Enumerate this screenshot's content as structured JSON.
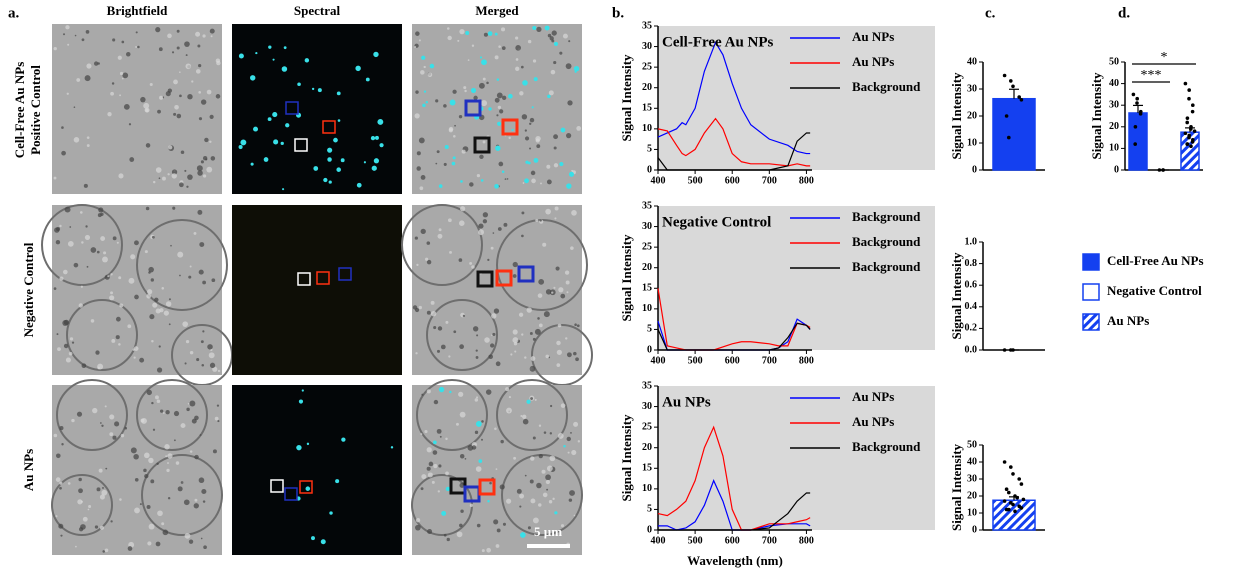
{
  "panel_a": {
    "label": "a.",
    "columns": [
      "Brightfield",
      "Spectral",
      "Merged"
    ],
    "row_labels": [
      [
        "Cell-Free Au NPs",
        "Positive Control"
      ],
      [
        "Negative Control"
      ],
      [
        "Au NPs"
      ]
    ],
    "scale_bar": "5 µm"
  },
  "chart_data": [
    {
      "type": "line",
      "panel_label": "b.",
      "title": "Cell-Free Au NPs",
      "y_label": "Signal Intensity",
      "x": [
        400,
        425,
        450,
        465,
        475,
        500,
        525,
        555,
        575,
        600,
        625,
        650,
        700,
        750,
        775,
        800,
        810
      ],
      "series": [
        {
          "name": "Au NPs",
          "color": "#0000ff",
          "values": [
            8,
            9,
            10,
            11.5,
            11,
            15,
            24,
            31,
            28,
            21,
            15,
            11,
            7.5,
            6,
            4.5,
            4,
            4
          ]
        },
        {
          "name": "Au NPs",
          "color": "#ff0000",
          "values": [
            10,
            9.5,
            6,
            4,
            3.5,
            5,
            9,
            12.5,
            10,
            4,
            2,
            1.5,
            1.5,
            1,
            1.5,
            1,
            1
          ]
        },
        {
          "name": "Background",
          "color": "#000000",
          "values": [
            3,
            0,
            0,
            0,
            0,
            0,
            0,
            0,
            0,
            0,
            0,
            0,
            0,
            1,
            7,
            9,
            9
          ]
        }
      ],
      "xlim": [
        400,
        815
      ],
      "xticks": [
        400,
        500,
        600,
        700,
        800
      ],
      "ylim": [
        0,
        35
      ],
      "yticks": [
        0,
        5,
        10,
        15,
        20,
        25,
        30,
        35
      ]
    },
    {
      "type": "line",
      "title": "Negative Control",
      "y_label": "Signal Intensity",
      "x": [
        400,
        425,
        450,
        475,
        500,
        550,
        600,
        625,
        650,
        700,
        725,
        750,
        775,
        800,
        810
      ],
      "series": [
        {
          "name": "Background",
          "color": "#0000ff",
          "values": [
            7,
            0,
            0,
            0,
            0,
            0,
            0,
            0,
            0,
            0,
            0.5,
            2,
            7.5,
            6,
            5
          ]
        },
        {
          "name": "Background",
          "color": "#ff0000",
          "values": [
            15,
            1,
            0.5,
            0,
            0,
            0,
            1.5,
            2,
            2,
            1.5,
            1,
            1,
            6.5,
            6,
            5.5
          ]
        },
        {
          "name": "Background",
          "color": "#000000",
          "values": [
            5,
            0,
            0,
            0,
            0,
            0,
            0,
            0,
            0,
            0,
            0.5,
            3,
            6.5,
            6,
            5
          ]
        }
      ],
      "xlim": [
        400,
        815
      ],
      "xticks": [
        400,
        500,
        600,
        700,
        800
      ],
      "ylim": [
        0,
        35
      ],
      "yticks": [
        0,
        5,
        10,
        15,
        20,
        25,
        30,
        35
      ]
    },
    {
      "type": "line",
      "title": "Au NPs",
      "y_label": "Signal Intensity",
      "x_label": "Wavelength (nm)",
      "x": [
        400,
        425,
        450,
        475,
        500,
        525,
        550,
        575,
        600,
        625,
        650,
        700,
        750,
        775,
        800,
        810
      ],
      "series": [
        {
          "name": "Au NPs",
          "color": "#0000ff",
          "values": [
            1,
            1,
            0,
            0.5,
            2,
            6,
            12,
            7,
            0,
            0,
            0,
            1,
            1.5,
            1.5,
            1.5,
            1
          ]
        },
        {
          "name": "Au NPs",
          "color": "#ff0000",
          "values": [
            4,
            3.5,
            5,
            7,
            12,
            20,
            25,
            18,
            5,
            0,
            0,
            1.5,
            1.5,
            2,
            2.5,
            3
          ]
        },
        {
          "name": "Background",
          "color": "#000000",
          "values": [
            0,
            0,
            0,
            0,
            0,
            0,
            0,
            0,
            0,
            0,
            0,
            0.5,
            4,
            7,
            9,
            9
          ]
        }
      ],
      "xlim": [
        400,
        815
      ],
      "xticks": [
        400,
        500,
        600,
        700,
        800
      ],
      "ylim": [
        0,
        35
      ],
      "yticks": [
        0,
        5,
        10,
        15,
        20,
        25,
        30,
        35
      ]
    },
    {
      "type": "bar",
      "panel_label": "c.",
      "y_label": "Signal Intensity",
      "categories": [
        null
      ],
      "values": [
        26.4
      ],
      "errors": [
        3.5
      ],
      "points": [
        [
          35,
          33,
          31,
          27,
          26,
          20,
          12
        ]
      ],
      "color": "#1440f0",
      "fill": "solid",
      "ylim": [
        0,
        40
      ],
      "yticks": [
        0,
        10,
        20,
        30,
        40
      ]
    },
    {
      "type": "bar",
      "y_label": "Signal Intensity",
      "categories": [
        null
      ],
      "values": [
        0
      ],
      "errors": [
        0
      ],
      "points": [
        [
          0,
          0,
          0
        ]
      ],
      "color": "#1440f0",
      "fill": "none",
      "ylim": [
        0,
        1
      ],
      "yticks": [
        {
          "value": 0,
          "label": "0.0"
        },
        0.2,
        0.4,
        0.6,
        0.8,
        {
          "value": 1,
          "label": "1.0"
        }
      ]
    },
    {
      "type": "bar",
      "y_label": "Signal Intensity",
      "categories": [
        null
      ],
      "values": [
        17.5
      ],
      "errors": [
        2
      ],
      "points": [
        [
          40,
          37,
          33,
          30,
          27,
          24,
          22,
          20,
          19,
          18,
          17,
          16,
          15,
          14,
          13,
          12,
          12,
          11
        ]
      ],
      "color": "#1440f0",
      "fill": "hatch",
      "ylim": [
        0,
        50
      ],
      "yticks": [
        0,
        10,
        20,
        30,
        40,
        50
      ]
    },
    {
      "type": "bar",
      "panel_label": "d.",
      "y_label": "Signal Intensity",
      "categories": [
        null,
        null,
        null
      ],
      "series": [
        {
          "name": "Cell-Free Au NPs",
          "color": "#1440f0",
          "fill": "solid",
          "values": [
            26.4,
            null,
            null
          ],
          "errors": [
            3.5,
            null,
            null
          ],
          "points": [
            [
              35,
              33,
              31,
              27,
              26,
              20,
              12
            ],
            null,
            null
          ]
        },
        {
          "name": "Negative Control",
          "color": "#1440f0",
          "fill": "none",
          "values": [
            null,
            0,
            null
          ],
          "errors": [
            null,
            0,
            null
          ],
          "points": [
            null,
            [
              0,
              0,
              0
            ],
            null
          ]
        },
        {
          "name": "Au NPs",
          "color": "#1440f0",
          "fill": "hatch",
          "values": [
            null,
            null,
            17.5
          ],
          "errors": [
            null,
            null,
            2
          ],
          "points": [
            null,
            null,
            [
              40,
              37,
              33,
              30,
              27,
              24,
              22,
              20,
              19,
              18,
              17,
              16,
              15,
              14,
              13,
              12,
              12,
              11
            ]
          ]
        }
      ],
      "annotations": [
        "***",
        "*"
      ],
      "legend": "right",
      "ylim": [
        0,
        50
      ],
      "yticks": [
        0,
        10,
        20,
        30,
        40,
        50
      ]
    }
  ]
}
